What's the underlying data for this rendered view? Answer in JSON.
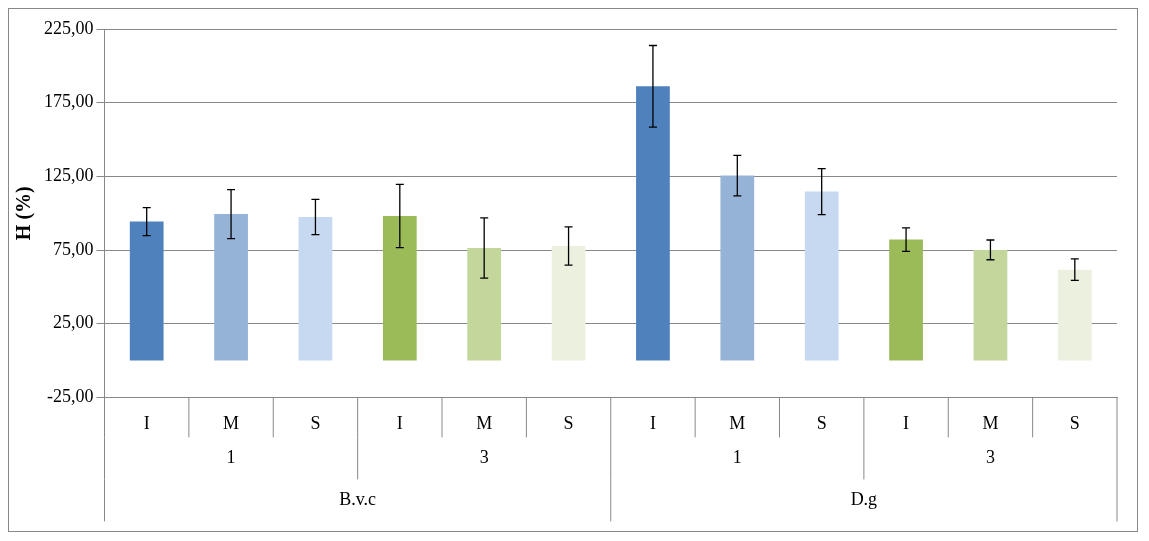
{
  "chart_data": {
    "type": "bar",
    "ylabel": "H (%)",
    "categories": [
      "I",
      "M",
      "S",
      "I",
      "M",
      "S",
      "I",
      "M",
      "S",
      "I",
      "M",
      "S"
    ],
    "values": [
      94.3,
      99.4,
      97.4,
      98.1,
      76.4,
      77.7,
      186.1,
      125.5,
      114.7,
      82.1,
      75.1,
      61.7
    ],
    "errors": [
      9.5,
      16.6,
      12,
      21.4,
      20.4,
      13,
      27.7,
      13.7,
      15.6,
      8,
      6.7,
      7.3
    ],
    "colors": [
      "#4f81bd",
      "#95b3d7",
      "#c6d9f1",
      "#9bbb59",
      "#c3d69b",
      "#ebf1de",
      "#4f81bd",
      "#95b3d7",
      "#c6d9f1",
      "#9bbb59",
      "#c3d69b",
      "#ebf1de"
    ],
    "ylim": [
      -25,
      225
    ],
    "yticks": [
      {
        "value": -25,
        "label": "-25,00"
      },
      {
        "value": 25,
        "label": "25,00"
      },
      {
        "value": 75,
        "label": "75,00"
      },
      {
        "value": 125,
        "label": "125,00"
      },
      {
        "value": 175,
        "label": "175,00"
      },
      {
        "value": 225,
        "label": "225,00"
      }
    ],
    "grid": "y",
    "annotations": [
      "1",
      "3",
      "1",
      "3",
      "B.v.c",
      "D.g"
    ]
  }
}
